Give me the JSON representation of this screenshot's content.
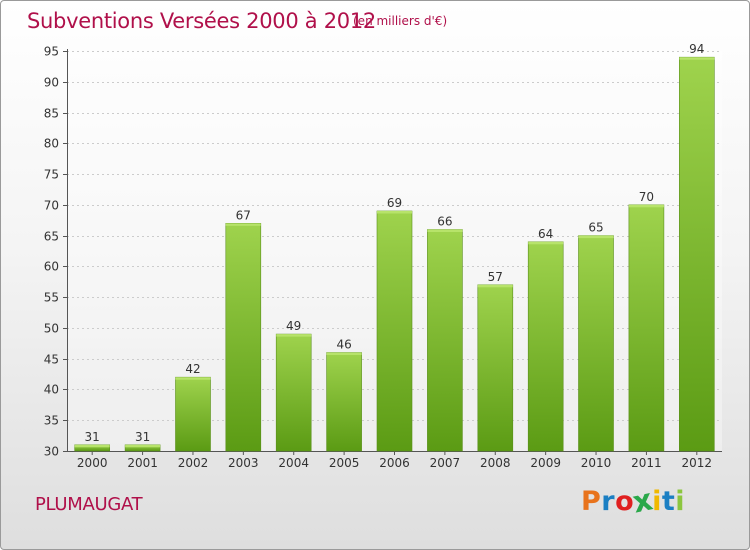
{
  "header": {
    "title": "Subventions Versées 2000 à 2012",
    "subtitle": "(en milliers d'€)"
  },
  "footer": {
    "commune": "PLUMAUGAT",
    "logo_text": "Proxiti",
    "logo_colors": [
      "#e8731c",
      "#1b7fc3",
      "#e02020",
      "#2aa84a",
      "#f0b800",
      "#1b7fc3",
      "#8cc63f"
    ]
  },
  "colors": {
    "title": "#b0104a",
    "bar_top": "#9fd34d",
    "bar_bottom": "#5b9b14",
    "grid": "#cccccc"
  },
  "chart_data": {
    "type": "bar",
    "categories": [
      "2000",
      "2001",
      "2002",
      "2003",
      "2004",
      "2005",
      "2006",
      "2007",
      "2008",
      "2009",
      "2010",
      "2011",
      "2012"
    ],
    "values": [
      31,
      31,
      42,
      67,
      49,
      46,
      69,
      66,
      57,
      64,
      65,
      70,
      94
    ],
    "title": "Subventions Versées 2000 à 2012",
    "subtitle": "(en milliers d'€)",
    "xlabel": "",
    "ylabel": "",
    "ylim": [
      30,
      95
    ],
    "yticks": [
      30,
      35,
      40,
      45,
      50,
      55,
      60,
      65,
      70,
      75,
      80,
      85,
      90,
      95
    ],
    "grid": true,
    "data_labels": true
  }
}
